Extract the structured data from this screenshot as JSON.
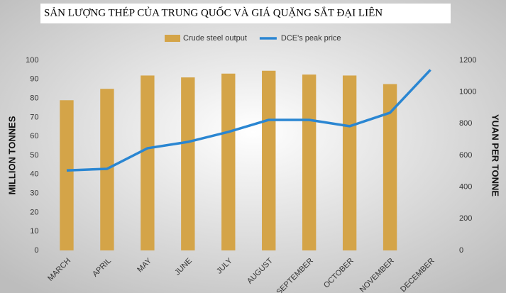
{
  "chart_data": {
    "type": "bar-line",
    "title": "SẢN LƯỢNG THÉP CỦA TRUNG QUỐC VÀ GIÁ QUẶNG SẮT ĐẠI LIÊN",
    "y_label": "MILLION TONNES",
    "y2_label": "YUAN PER TONNE",
    "categories": [
      "MARCH",
      "APRIL",
      "MAY",
      "JUNE",
      "JULY",
      "AUGUST",
      "SEPTEMBER",
      "OCTOBER",
      "NOVEMBER",
      "DECEMBER"
    ],
    "series": [
      {
        "name": "Crude steel output",
        "type": "bar",
        "color": "#d4a448",
        "values": [
          79,
          85,
          92,
          91,
          93,
          94.5,
          92.5,
          92,
          87.5,
          null
        ]
      },
      {
        "name": "DCE's peak price",
        "type": "line",
        "axis": "y2",
        "color": "#2a86d2",
        "values": [
          505,
          515,
          645,
          685,
          748,
          824,
          824,
          784,
          869,
          1140
        ]
      }
    ],
    "ylim": [
      0,
      100
    ],
    "yticks": [
      0,
      10,
      20,
      30,
      40,
      50,
      60,
      70,
      80,
      90,
      100
    ],
    "y2lim": [
      0,
      1200
    ],
    "y2ticks": [
      0,
      200,
      400,
      600,
      800,
      1000,
      1200
    ],
    "legend": "top"
  }
}
